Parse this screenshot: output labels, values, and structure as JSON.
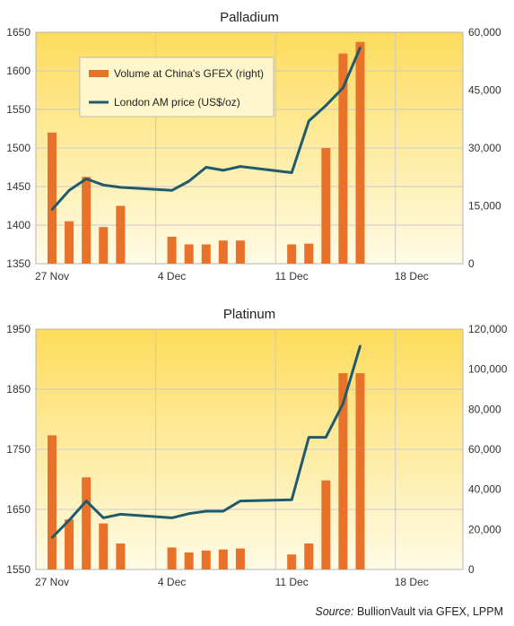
{
  "source": {
    "label": "Source:",
    "text": "BullionVault via GFEX, LPPM"
  },
  "colors": {
    "bar": "#e8722a",
    "line": "#1f5b6e",
    "bg_top": "#fddc5c",
    "bg_bottom": "#fffbe6",
    "grid": "#c9c9c9"
  },
  "chart_data": [
    {
      "type": "bar",
      "title": "Palladium",
      "x": [
        "27 Nov",
        "28 Nov",
        "29 Nov",
        "30 Nov",
        "1 Dec",
        "4 Dec",
        "5 Dec",
        "6 Dec",
        "7 Dec",
        "8 Dec",
        "11 Dec",
        "12 Dec",
        "13 Dec",
        "14 Dec",
        "15 Dec"
      ],
      "xticks": [
        "27 Nov",
        "4 Dec",
        "11 Dec",
        "18 Dec"
      ],
      "y_left": {
        "ticks": [
          1350,
          1400,
          1450,
          1500,
          1550,
          1600,
          1650
        ],
        "min": 1350,
        "max": 1650
      },
      "y_right": {
        "ticks": [
          "0",
          "15,000",
          "30,000",
          "45,000",
          "60,000"
        ],
        "min": 0,
        "max": 60000
      },
      "legend": {
        "placement": "top-left",
        "bar_label": "Volume at China's GFEX (right)",
        "line_label": "London AM price (US$/oz)"
      },
      "series": [
        {
          "name": "Volume at China's GFEX (right)",
          "type": "bar",
          "axis": "right",
          "values": [
            34000,
            11000,
            22500,
            9500,
            15000,
            7000,
            5000,
            5000,
            6000,
            6000,
            5000,
            5200,
            30000,
            54500,
            57500
          ]
        },
        {
          "name": "London AM price (US$/oz)",
          "type": "line",
          "axis": "left",
          "values": [
            1420,
            1445,
            1460,
            1452,
            1449,
            1445,
            1457,
            1475,
            1471,
            1476,
            1468,
            1535,
            1555,
            1578,
            1630
          ]
        }
      ]
    },
    {
      "type": "bar",
      "title": "Platinum",
      "x": [
        "27 Nov",
        "28 Nov",
        "29 Nov",
        "30 Nov",
        "1 Dec",
        "4 Dec",
        "5 Dec",
        "6 Dec",
        "7 Dec",
        "8 Dec",
        "11 Dec",
        "12 Dec",
        "13 Dec",
        "14 Dec",
        "15 Dec"
      ],
      "xticks": [
        "27 Nov",
        "4 Dec",
        "11 Dec",
        "18 Dec"
      ],
      "y_left": {
        "ticks": [
          1550,
          1650,
          1750,
          1850,
          1950
        ],
        "min": 1550,
        "max": 1950
      },
      "y_right": {
        "ticks": [
          "0",
          "20,000",
          "40,000",
          "60,000",
          "80,000",
          "100,000",
          "120,000"
        ],
        "min": 0,
        "max": 120000
      },
      "series": [
        {
          "name": "Volume at China's GFEX (right)",
          "type": "bar",
          "axis": "right",
          "values": [
            67000,
            25000,
            46000,
            23000,
            13000,
            11000,
            8500,
            9500,
            10000,
            10500,
            7500,
            13000,
            44500,
            98000,
            98000
          ]
        },
        {
          "name": "London AM price (US$/oz)",
          "type": "line",
          "axis": "left",
          "values": [
            1603,
            1632,
            1664,
            1636,
            1642,
            1636,
            1643,
            1647,
            1647,
            1664,
            1666,
            1770,
            1770,
            1826,
            1922
          ]
        }
      ]
    }
  ]
}
